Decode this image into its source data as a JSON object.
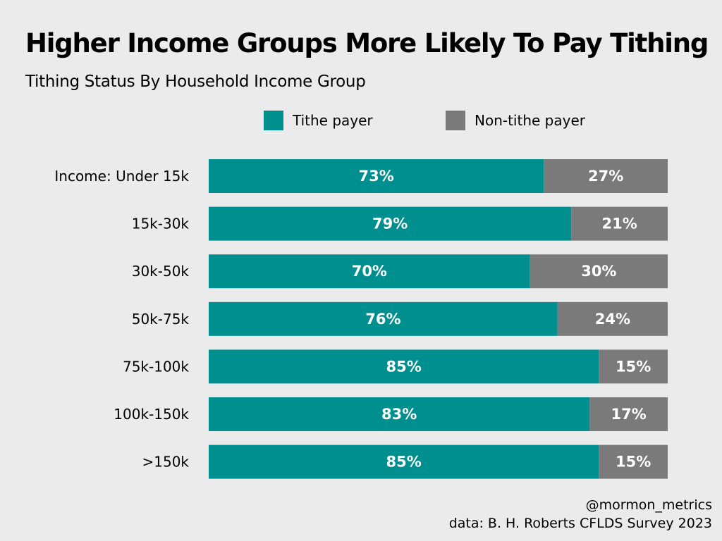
{
  "chart_data": {
    "type": "bar",
    "orientation": "horizontal",
    "stacked": true,
    "title": "Higher Income Groups More Likely To Pay Tithing",
    "subtitle": "Tithing Status By Household Income Group",
    "categories": [
      "Income: Under 15k",
      "15k-30k",
      "30k-50k",
      "50k-75k",
      "75k-100k",
      "100k-150k",
      ">150k"
    ],
    "series": [
      {
        "name": "Tithe payer",
        "color": "#008f8f",
        "values": [
          73,
          79,
          70,
          76,
          85,
          83,
          85
        ],
        "labels": [
          "73%",
          "79%",
          "70%",
          "76%",
          "85%",
          "83%",
          "85%"
        ]
      },
      {
        "name": "Non-tithe payer",
        "color": "#7a7a7a",
        "values": [
          27,
          21,
          30,
          24,
          15,
          17,
          15
        ],
        "labels": [
          "27%",
          "21%",
          "30%",
          "24%",
          "15%",
          "17%",
          "15%"
        ]
      }
    ],
    "xlim": [
      0,
      100
    ],
    "xlabel": "",
    "ylabel": "",
    "grid": false,
    "legend_position": "top"
  },
  "footer": {
    "handle": "@mormon_metrics",
    "source": "data: B. H. Roberts CFLDS Survey 2023"
  }
}
